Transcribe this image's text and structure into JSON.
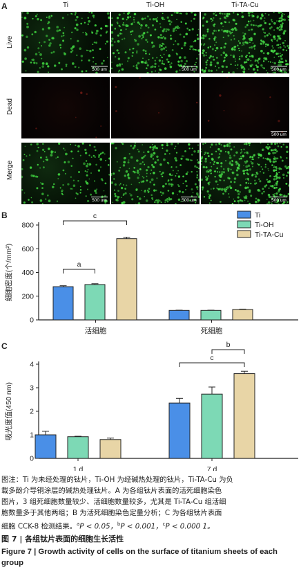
{
  "panel_a": {
    "letter": "A",
    "columns": [
      "Ti",
      "Ti-OH",
      "Ti-TA-Cu"
    ],
    "rows": [
      "Live",
      "Dead",
      "Merge"
    ],
    "scale_bar": "500 um"
  },
  "panel_b": {
    "letter": "B"
  },
  "panel_c": {
    "letter": "C"
  },
  "chart_data": [
    {
      "type": "bar",
      "ylabel": "细胞密度(个/mm²)",
      "ylim": [
        0,
        800
      ],
      "yticks": [
        0,
        200,
        400,
        600,
        800
      ],
      "categories": [
        "活细胞",
        "死细胞"
      ],
      "legend": [
        "Ti",
        "Ti-OH",
        "Ti-TA-Cu"
      ],
      "legend_position": "top-right",
      "series": [
        {
          "name": "Ti",
          "color": "#4a8fe7",
          "values": [
            280,
            80
          ],
          "errors": [
            8,
            2
          ]
        },
        {
          "name": "Ti-OH",
          "color": "#7dd9b5",
          "values": [
            298,
            80
          ],
          "errors": [
            7,
            2
          ]
        },
        {
          "name": "Ti-TA-Cu",
          "color": "#e8d5a6",
          "values": [
            685,
            88
          ],
          "errors": [
            12,
            3
          ]
        }
      ],
      "annotations": [
        {
          "label": "a",
          "from_series": 0,
          "to_series": 1,
          "category": 0
        },
        {
          "label": "c",
          "from_series": 0,
          "to_series": 2,
          "category": 0
        }
      ]
    },
    {
      "type": "bar",
      "ylabel": "吸光度值(450 nm)",
      "ylim": [
        0,
        4
      ],
      "yticks": [
        0,
        1,
        2,
        3,
        4
      ],
      "categories": [
        "1 d",
        "7 d"
      ],
      "series": [
        {
          "name": "Ti",
          "color": "#4a8fe7",
          "values": [
            1.0,
            2.35
          ],
          "errors": [
            0.15,
            0.2
          ]
        },
        {
          "name": "Ti-OH",
          "color": "#7dd9b5",
          "values": [
            0.92,
            2.73
          ],
          "errors": [
            0.02,
            0.3
          ]
        },
        {
          "name": "Ti-TA-Cu",
          "color": "#e8d5a6",
          "values": [
            0.8,
            3.6
          ],
          "errors": [
            0.06,
            0.1
          ]
        }
      ],
      "annotations": [
        {
          "label": "b",
          "from_series": 1,
          "to_series": 2,
          "category": 1
        },
        {
          "label": "c",
          "from_series": 0,
          "to_series": 2,
          "category": 1
        }
      ]
    }
  ],
  "caption": {
    "note_lines": [
      "图注：Ti 为未经处理的钛片，Ti-OH 为经碱热处理的钛片，Ti-TA-Cu 为负",
      "载多酚介导铜涂层的碱热处理钛片。A 为各组钛片表面的活死细胞染色",
      "图片，3 组死细胞数量较少、活细胞数量较多，尤其是 Ti-TA-Cu 组活细",
      "胞数量多于其他两组；B 为活死细胞染色定量分析；C 为各组钛片表面"
    ],
    "last_line_prefix": "细胞 CCK-8 检测结果。",
    "sig_a": "a",
    "sig_a_text": "P < 0.05，",
    "sig_b": "b",
    "sig_b_text": "P < 0.001，",
    "sig_c": "c",
    "sig_c_text": "P < 0.000 1。",
    "title_cn": "图 7 | 各组钛片表面的细胞生长活性",
    "title_en": "Figure 7 | Growth activity of cells on the surface of titanium sheets of each group"
  }
}
